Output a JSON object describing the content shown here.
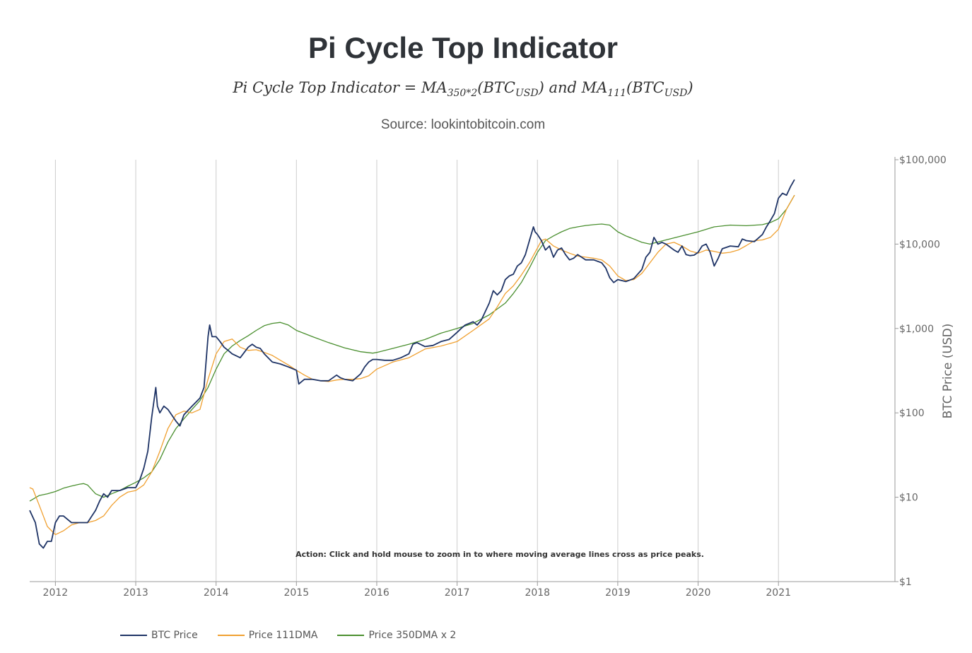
{
  "header": {
    "title": "Pi Cycle Top Indicator",
    "formula_lhs": "Pi Cycle Top Indicator",
    "formula_eq": " = ",
    "formula_ma": "MA",
    "formula_sub1": "350*2",
    "formula_arg": "(BTC",
    "formula_sub_usd": "USD",
    "formula_close": ")",
    "formula_and": " and ",
    "formula_sub2": "111",
    "source": "Source: lookintobitcoin.com"
  },
  "action_text": "Action: Click and hold mouse to zoom in to where moving average lines cross as price peaks.",
  "colors": {
    "btc": "#1f3466",
    "ma111": "#f0a030",
    "ma350x2": "#4a8f2f",
    "grid": "#cccccc",
    "axis_text": "#666666"
  },
  "legend": [
    {
      "label": "BTC Price",
      "color": "#1f3466"
    },
    {
      "label": "Price 111DMA",
      "color": "#f0a030"
    },
    {
      "label": "Price 350DMA x 2",
      "color": "#4a8f2f"
    }
  ],
  "chart_data": {
    "type": "line",
    "title": "Pi Cycle Top Indicator",
    "xlabel": "",
    "ylabel": "BTC Price (USD)",
    "y_scale": "log",
    "ylim": [
      1,
      100000
    ],
    "xlim": [
      2011.68,
      2022.45
    ],
    "x_ticks": [
      2012,
      2013,
      2014,
      2015,
      2016,
      2017,
      2018,
      2019,
      2020,
      2021
    ],
    "x_tick_labels": [
      "2012",
      "2013",
      "2014",
      "2015",
      "2016",
      "2017",
      "2018",
      "2019",
      "2020",
      "2021"
    ],
    "y_ticks": [
      1,
      10,
      100,
      1000,
      10000,
      100000
    ],
    "y_tick_labels": [
      "$1",
      "$10",
      "$100",
      "$1,000",
      "$10,000",
      "$100,000"
    ],
    "grid": "vertical",
    "legend_position": "bottom-left",
    "series": [
      {
        "name": "BTC Price",
        "x": [
          2011.68,
          2011.75,
          2011.8,
          2011.85,
          2011.9,
          2011.95,
          2012.0,
          2012.05,
          2012.1,
          2012.2,
          2012.3,
          2012.4,
          2012.5,
          2012.55,
          2012.6,
          2012.65,
          2012.7,
          2012.8,
          2012.9,
          2013.0,
          2013.05,
          2013.1,
          2013.15,
          2013.2,
          2013.25,
          2013.27,
          2013.3,
          2013.35,
          2013.4,
          2013.5,
          2013.55,
          2013.6,
          2013.7,
          2013.8,
          2013.85,
          2013.9,
          2013.92,
          2013.95,
          2014.0,
          2014.05,
          2014.1,
          2014.15,
          2014.2,
          2014.3,
          2014.4,
          2014.45,
          2014.5,
          2014.55,
          2014.6,
          2014.7,
          2014.8,
          2014.9,
          2015.0,
          2015.03,
          2015.1,
          2015.2,
          2015.3,
          2015.4,
          2015.5,
          2015.55,
          2015.6,
          2015.7,
          2015.8,
          2015.85,
          2015.9,
          2015.95,
          2016.0,
          2016.1,
          2016.2,
          2016.3,
          2016.4,
          2016.45,
          2016.5,
          2016.6,
          2016.7,
          2016.8,
          2016.9,
          2017.0,
          2017.05,
          2017.1,
          2017.2,
          2017.25,
          2017.3,
          2017.4,
          2017.45,
          2017.5,
          2017.55,
          2017.6,
          2017.65,
          2017.7,
          2017.75,
          2017.8,
          2017.85,
          2017.9,
          2017.95,
          2017.97,
          2018.0,
          2018.05,
          2018.1,
          2018.15,
          2018.2,
          2018.25,
          2018.3,
          2018.35,
          2018.4,
          2018.45,
          2018.5,
          2018.6,
          2018.7,
          2018.8,
          2018.85,
          2018.9,
          2018.95,
          2019.0,
          2019.1,
          2019.2,
          2019.3,
          2019.35,
          2019.4,
          2019.45,
          2019.5,
          2019.55,
          2019.6,
          2019.7,
          2019.75,
          2019.8,
          2019.85,
          2019.9,
          2019.95,
          2020.0,
          2020.05,
          2020.1,
          2020.15,
          2020.2,
          2020.25,
          2020.3,
          2020.4,
          2020.5,
          2020.55,
          2020.6,
          2020.7,
          2020.8,
          2020.85,
          2020.9,
          2020.95,
          2021.0,
          2021.05,
          2021.1,
          2021.15,
          2021.2
        ],
        "values": [
          7,
          5,
          2.8,
          2.5,
          3,
          3,
          5,
          6,
          6,
          5,
          5,
          5,
          7,
          9,
          11,
          10,
          12,
          12,
          13,
          13,
          16,
          22,
          35,
          90,
          200,
          120,
          100,
          120,
          110,
          80,
          70,
          95,
          120,
          150,
          200,
          800,
          1100,
          800,
          800,
          700,
          600,
          550,
          500,
          450,
          600,
          650,
          600,
          580,
          500,
          400,
          380,
          350,
          320,
          220,
          250,
          250,
          240,
          240,
          280,
          260,
          250,
          240,
          290,
          350,
          400,
          430,
          430,
          420,
          420,
          450,
          500,
          650,
          680,
          610,
          630,
          700,
          740,
          900,
          1000,
          1100,
          1200,
          1100,
          1250,
          2000,
          2800,
          2500,
          2800,
          3800,
          4200,
          4400,
          5500,
          6000,
          7500,
          11000,
          16000,
          14000,
          13000,
          11000,
          8500,
          9500,
          7000,
          8500,
          9000,
          7500,
          6500,
          6800,
          7500,
          6500,
          6500,
          6000,
          5200,
          4000,
          3500,
          3800,
          3600,
          3900,
          5000,
          7000,
          8000,
          12000,
          10000,
          10500,
          10000,
          8500,
          8000,
          9500,
          7500,
          7300,
          7400,
          8000,
          9500,
          10000,
          8000,
          5500,
          6800,
          8800,
          9500,
          9300,
          11500,
          11000,
          10700,
          13000,
          16000,
          19000,
          23000,
          35000,
          40000,
          38000,
          48000,
          58000
        ]
      },
      {
        "name": "Price 111DMA",
        "x": [
          2011.68,
          2011.72,
          2011.8,
          2011.9,
          2012.0,
          2012.1,
          2012.2,
          2012.3,
          2012.4,
          2012.5,
          2012.6,
          2012.7,
          2012.8,
          2012.9,
          2013.0,
          2013.1,
          2013.2,
          2013.3,
          2013.4,
          2013.5,
          2013.6,
          2013.7,
          2013.8,
          2013.9,
          2014.0,
          2014.1,
          2014.2,
          2014.3,
          2014.4,
          2014.5,
          2014.6,
          2014.7,
          2014.8,
          2014.9,
          2015.0,
          2015.1,
          2015.2,
          2015.3,
          2015.4,
          2015.5,
          2015.6,
          2015.7,
          2015.8,
          2015.9,
          2016.0,
          2016.2,
          2016.4,
          2016.6,
          2016.8,
          2017.0,
          2017.2,
          2017.4,
          2017.5,
          2017.6,
          2017.7,
          2017.8,
          2017.9,
          2018.0,
          2018.05,
          2018.1,
          2018.2,
          2018.3,
          2018.4,
          2018.5,
          2018.6,
          2018.7,
          2018.8,
          2018.9,
          2019.0,
          2019.1,
          2019.2,
          2019.3,
          2019.4,
          2019.5,
          2019.6,
          2019.7,
          2019.8,
          2019.9,
          2020.0,
          2020.1,
          2020.2,
          2020.3,
          2020.4,
          2020.5,
          2020.6,
          2020.7,
          2020.8,
          2020.9,
          2021.0,
          2021.1,
          2021.2
        ],
        "values": [
          13,
          12.5,
          8,
          4.5,
          3.6,
          4,
          4.7,
          5,
          5,
          5.3,
          6,
          8,
          10,
          11.5,
          12,
          14,
          20,
          35,
          65,
          95,
          105,
          100,
          110,
          250,
          500,
          700,
          750,
          600,
          550,
          560,
          520,
          480,
          420,
          370,
          320,
          280,
          250,
          240,
          235,
          245,
          250,
          250,
          255,
          275,
          330,
          400,
          450,
          570,
          620,
          700,
          950,
          1300,
          1800,
          2600,
          3200,
          4300,
          6000,
          9000,
          11000,
          11500,
          9500,
          8500,
          7800,
          7200,
          7000,
          6800,
          6500,
          5500,
          4200,
          3700,
          3800,
          4500,
          6000,
          8000,
          10000,
          10500,
          9500,
          8300,
          7800,
          8500,
          8200,
          7800,
          8000,
          8500,
          9600,
          11000,
          11200,
          12000,
          15000,
          26000,
          38000
        ]
      },
      {
        "name": "Price 350DMA x 2",
        "x": [
          2011.68,
          2011.8,
          2011.9,
          2012.0,
          2012.1,
          2012.2,
          2012.3,
          2012.35,
          2012.4,
          2012.5,
          2012.6,
          2012.7,
          2012.8,
          2012.9,
          2013.0,
          2013.1,
          2013.2,
          2013.3,
          2013.4,
          2013.5,
          2013.6,
          2013.7,
          2013.8,
          2013.9,
          2014.0,
          2014.1,
          2014.2,
          2014.3,
          2014.4,
          2014.5,
          2014.6,
          2014.7,
          2014.8,
          2014.9,
          2015.0,
          2015.2,
          2015.4,
          2015.6,
          2015.8,
          2015.95,
          2016.0,
          2016.2,
          2016.4,
          2016.6,
          2016.8,
          2017.0,
          2017.2,
          2017.4,
          2017.6,
          2017.7,
          2017.8,
          2017.9,
          2018.0,
          2018.1,
          2018.2,
          2018.3,
          2018.4,
          2018.5,
          2018.6,
          2018.7,
          2018.8,
          2018.9,
          2019.0,
          2019.1,
          2019.2,
          2019.3,
          2019.4,
          2019.6,
          2019.8,
          2020.0,
          2020.2,
          2020.4,
          2020.6,
          2020.8,
          2020.9,
          2021.0,
          2021.1,
          2021.2
        ],
        "values": [
          9,
          10.5,
          11,
          11.7,
          12.8,
          13.6,
          14.3,
          14.5,
          14,
          11,
          10,
          11,
          12,
          13.5,
          15,
          17,
          20,
          28,
          45,
          65,
          85,
          110,
          140,
          200,
          330,
          500,
          620,
          720,
          820,
          950,
          1080,
          1150,
          1180,
          1100,
          950,
          800,
          680,
          590,
          530,
          510,
          520,
          580,
          650,
          740,
          880,
          1000,
          1150,
          1450,
          2000,
          2600,
          3500,
          5200,
          8000,
          11000,
          12500,
          14000,
          15300,
          16000,
          16600,
          17000,
          17300,
          16800,
          14000,
          12500,
          11500,
          10500,
          10000,
          11200,
          12500,
          14000,
          16000,
          16800,
          16500,
          17000,
          18000,
          20000,
          26000,
          38000
        ]
      }
    ]
  }
}
